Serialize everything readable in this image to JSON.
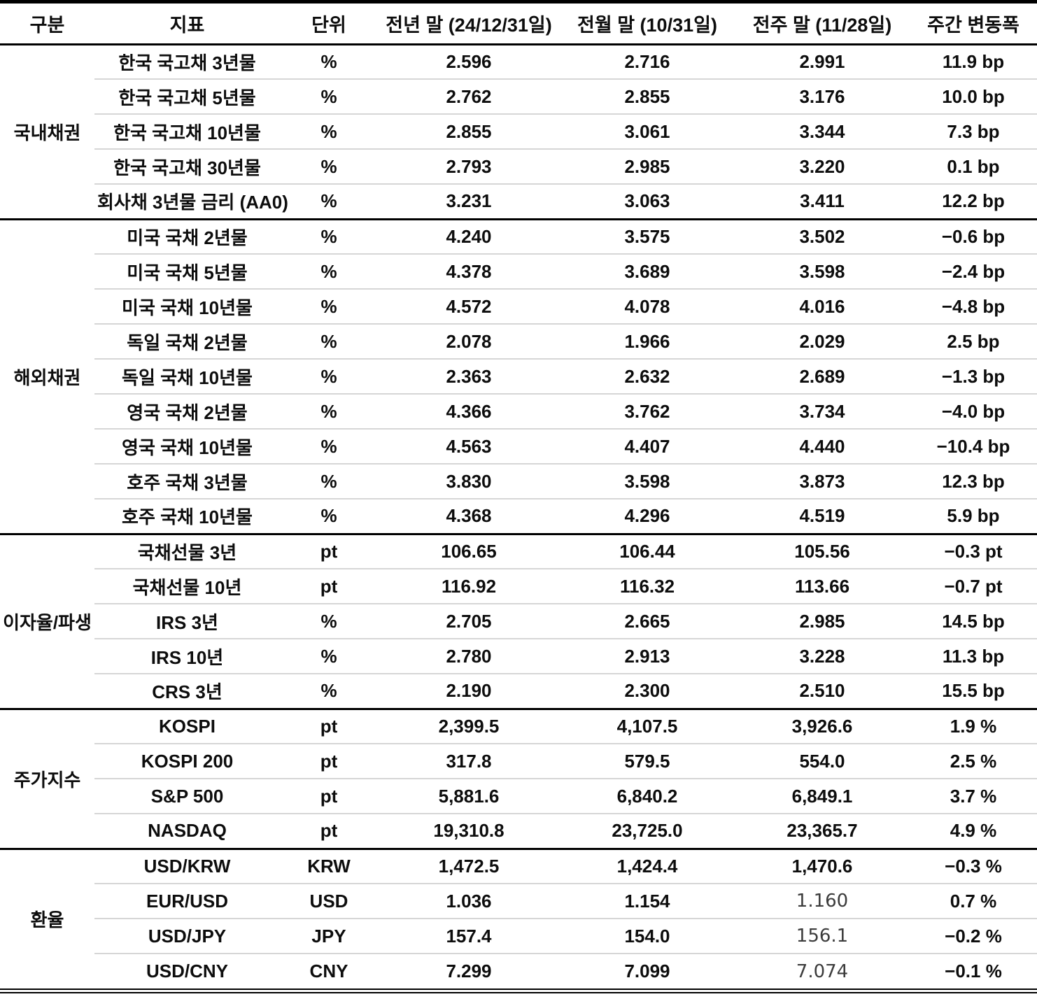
{
  "page": {
    "background": "#ffffff",
    "text_color": "#0d0d0d",
    "row_separator_color": "#d6d6d6",
    "section_border_color": "#000000"
  },
  "table": {
    "headers": [
      "구분",
      "지표",
      "단위",
      "전년 말 (24/12/31일)",
      "전월 말 (10/31일)",
      "전주 말 (11/28일)",
      "주간 변동폭"
    ],
    "groups": [
      {
        "name": "국내채권",
        "rows": [
          {
            "indicator": "한국 국고채 3년물",
            "unit": "%",
            "prev_year": "2.596",
            "prev_month": "2.716",
            "prev_week": "2.991",
            "weekly_change": "11.9 bp"
          },
          {
            "indicator": "한국 국고채 5년물",
            "unit": "%",
            "prev_year": "2.762",
            "prev_month": "2.855",
            "prev_week": "3.176",
            "weekly_change": "10.0 bp"
          },
          {
            "indicator": "한국 국고채 10년물",
            "unit": "%",
            "prev_year": "2.855",
            "prev_month": "3.061",
            "prev_week": "3.344",
            "weekly_change": "7.3 bp"
          },
          {
            "indicator": "한국 국고채 30년물",
            "unit": "%",
            "prev_year": "2.793",
            "prev_month": "2.985",
            "prev_week": "3.220",
            "weekly_change": "0.1 bp"
          },
          {
            "indicator": "회사채 3년물 금리 (AA0)",
            "unit": "%",
            "prev_year": "3.231",
            "prev_month": "3.063",
            "prev_week": "3.411",
            "weekly_change": "12.2 bp"
          }
        ]
      },
      {
        "name": "해외채권",
        "rows": [
          {
            "indicator": "미국 국채 2년물",
            "unit": "%",
            "prev_year": "4.240",
            "prev_month": "3.575",
            "prev_week": "3.502",
            "weekly_change": "−0.6 bp"
          },
          {
            "indicator": "미국 국채 5년물",
            "unit": "%",
            "prev_year": "4.378",
            "prev_month": "3.689",
            "prev_week": "3.598",
            "weekly_change": "−2.4 bp"
          },
          {
            "indicator": "미국 국채 10년물",
            "unit": "%",
            "prev_year": "4.572",
            "prev_month": "4.078",
            "prev_week": "4.016",
            "weekly_change": "−4.8 bp"
          },
          {
            "indicator": "독일 국채 2년물",
            "unit": "%",
            "prev_year": "2.078",
            "prev_month": "1.966",
            "prev_week": "2.029",
            "weekly_change": "2.5 bp"
          },
          {
            "indicator": "독일 국채 10년물",
            "unit": "%",
            "prev_year": "2.363",
            "prev_month": "2.632",
            "prev_week": "2.689",
            "weekly_change": "−1.3 bp"
          },
          {
            "indicator": "영국 국채 2년물",
            "unit": "%",
            "prev_year": "4.366",
            "prev_month": "3.762",
            "prev_week": "3.734",
            "weekly_change": "−4.0 bp"
          },
          {
            "indicator": "영국 국채 10년물",
            "unit": "%",
            "prev_year": "4.563",
            "prev_month": "4.407",
            "prev_week": "4.440",
            "weekly_change": "−10.4 bp"
          },
          {
            "indicator": "호주 국채 3년물",
            "unit": "%",
            "prev_year": "3.830",
            "prev_month": "3.598",
            "prev_week": "3.873",
            "weekly_change": "12.3 bp"
          },
          {
            "indicator": "호주 국채 10년물",
            "unit": "%",
            "prev_year": "4.368",
            "prev_month": "4.296",
            "prev_week": "4.519",
            "weekly_change": "5.9 bp"
          }
        ]
      },
      {
        "name": "이자율/파생",
        "rows": [
          {
            "indicator": "국채선물 3년",
            "unit": "pt",
            "prev_year": "106.65",
            "prev_month": "106.44",
            "prev_week": "105.56",
            "weekly_change": "−0.3 pt"
          },
          {
            "indicator": "국채선물 10년",
            "unit": "pt",
            "prev_year": "116.92",
            "prev_month": "116.32",
            "prev_week": "113.66",
            "weekly_change": "−0.7 pt"
          },
          {
            "indicator": "IRS 3년",
            "unit": "%",
            "prev_year": "2.705",
            "prev_month": "2.665",
            "prev_week": "2.985",
            "weekly_change": "14.5 bp"
          },
          {
            "indicator": "IRS 10년",
            "unit": "%",
            "prev_year": "2.780",
            "prev_month": "2.913",
            "prev_week": "3.228",
            "weekly_change": "11.3 bp"
          },
          {
            "indicator": "CRS 3년",
            "unit": "%",
            "prev_year": "2.190",
            "prev_month": "2.300",
            "prev_week": "2.510",
            "weekly_change": "15.5 bp"
          }
        ]
      },
      {
        "name": "주가지수",
        "rows": [
          {
            "indicator": "KOSPI",
            "unit": "pt",
            "prev_year": "2,399.5",
            "prev_month": "4,107.5",
            "prev_week": "3,926.6",
            "weekly_change": "1.9 %"
          },
          {
            "indicator": "KOSPI 200",
            "unit": "pt",
            "prev_year": "317.8",
            "prev_month": "579.5",
            "prev_week": "554.0",
            "weekly_change": "2.5 %"
          },
          {
            "indicator": "S&P 500",
            "unit": "pt",
            "prev_year": "5,881.6",
            "prev_month": "6,840.2",
            "prev_week": "6,849.1",
            "weekly_change": "3.7 %"
          },
          {
            "indicator": "NASDAQ",
            "unit": "pt",
            "prev_year": "19,310.8",
            "prev_month": "23,725.0",
            "prev_week": "23,365.7",
            "weekly_change": "4.9 %"
          }
        ]
      },
      {
        "name": "환율",
        "rows": [
          {
            "indicator": "USD/KRW",
            "unit": "KRW",
            "prev_year": "1,472.5",
            "prev_month": "1,424.4",
            "prev_week": "1,470.6",
            "weekly_change": "−0.3 %"
          },
          {
            "indicator": "EUR/USD",
            "unit": "USD",
            "prev_year": "1.036",
            "prev_month": "1.154",
            "prev_week": "1.160",
            "prev_week_light": true,
            "weekly_change": "0.7 %"
          },
          {
            "indicator": "USD/JPY",
            "unit": "JPY",
            "prev_year": "157.4",
            "prev_month": "154.0",
            "prev_week": "156.1",
            "prev_week_light": true,
            "weekly_change": "−0.2 %"
          },
          {
            "indicator": "USD/CNY",
            "unit": "CNY",
            "prev_year": "7.299",
            "prev_month": "7.099",
            "prev_week": "7.074",
            "prev_week_light": true,
            "weekly_change": "−0.1 %"
          }
        ]
      }
    ]
  }
}
